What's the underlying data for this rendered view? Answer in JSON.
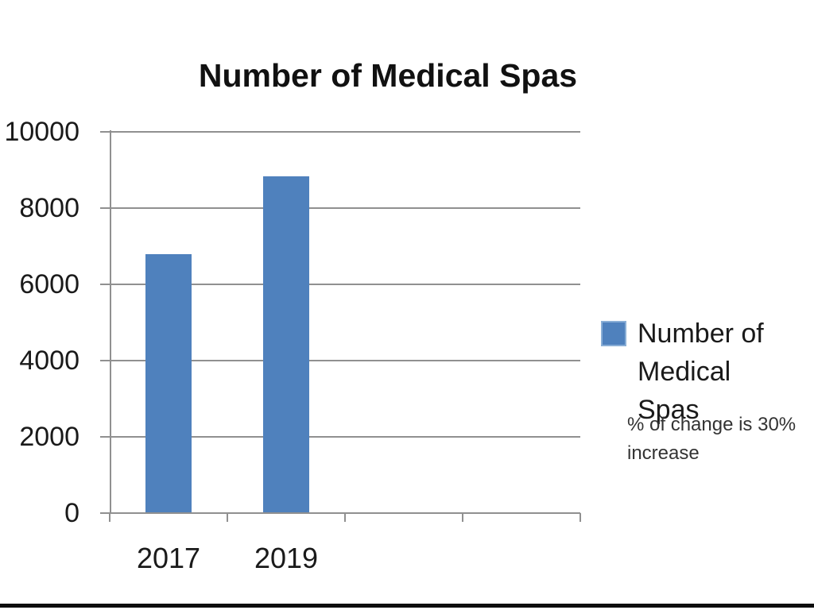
{
  "chart_data": {
    "type": "bar",
    "title": "Number of Medical Spas",
    "categories": [
      "2017",
      "2019"
    ],
    "series": [
      {
        "name": "Number of Medical Spas",
        "values": [
          6800,
          8840
        ]
      }
    ],
    "values": [
      6800,
      8840
    ],
    "category_slots": 4,
    "ylim": [
      0,
      10000
    ],
    "yticks": [
      0,
      2000,
      4000,
      6000,
      8000,
      10000
    ],
    "grid": true,
    "legend_position": "right",
    "bar_color": "#4F81BD",
    "annotation": "% of change is 30% increase"
  },
  "legend": {
    "label": "Number of Medical Spas",
    "marker_color": "#4F81BD"
  },
  "note": {
    "text": "% of change is 30% increase"
  },
  "colors": {
    "bar": "#4F81BD",
    "grid": "#909090",
    "title_text": "#111111",
    "axis_text": "#1a1a1a",
    "note_text": "#333333"
  }
}
